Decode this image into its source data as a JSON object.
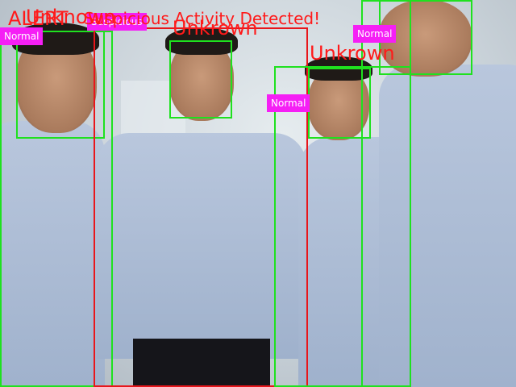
{
  "alerts": {
    "alert_text": "ALERT",
    "unknown_label": "Unknown",
    "suspicious_activity": "Suspicious Activity Detected!"
  },
  "faces": [
    {
      "label": "Unkrown"
    },
    {
      "label": "Unkrown"
    }
  ],
  "tags": {
    "t1": "Normal",
    "t2": "Suspicious",
    "t3": "Normal",
    "t4": "Normal"
  },
  "colors": {
    "box_green": "#1fe11f",
    "box_red": "#e8161b",
    "tag_magenta": "#f51ff5",
    "alert_text": "#ff1a1a"
  }
}
